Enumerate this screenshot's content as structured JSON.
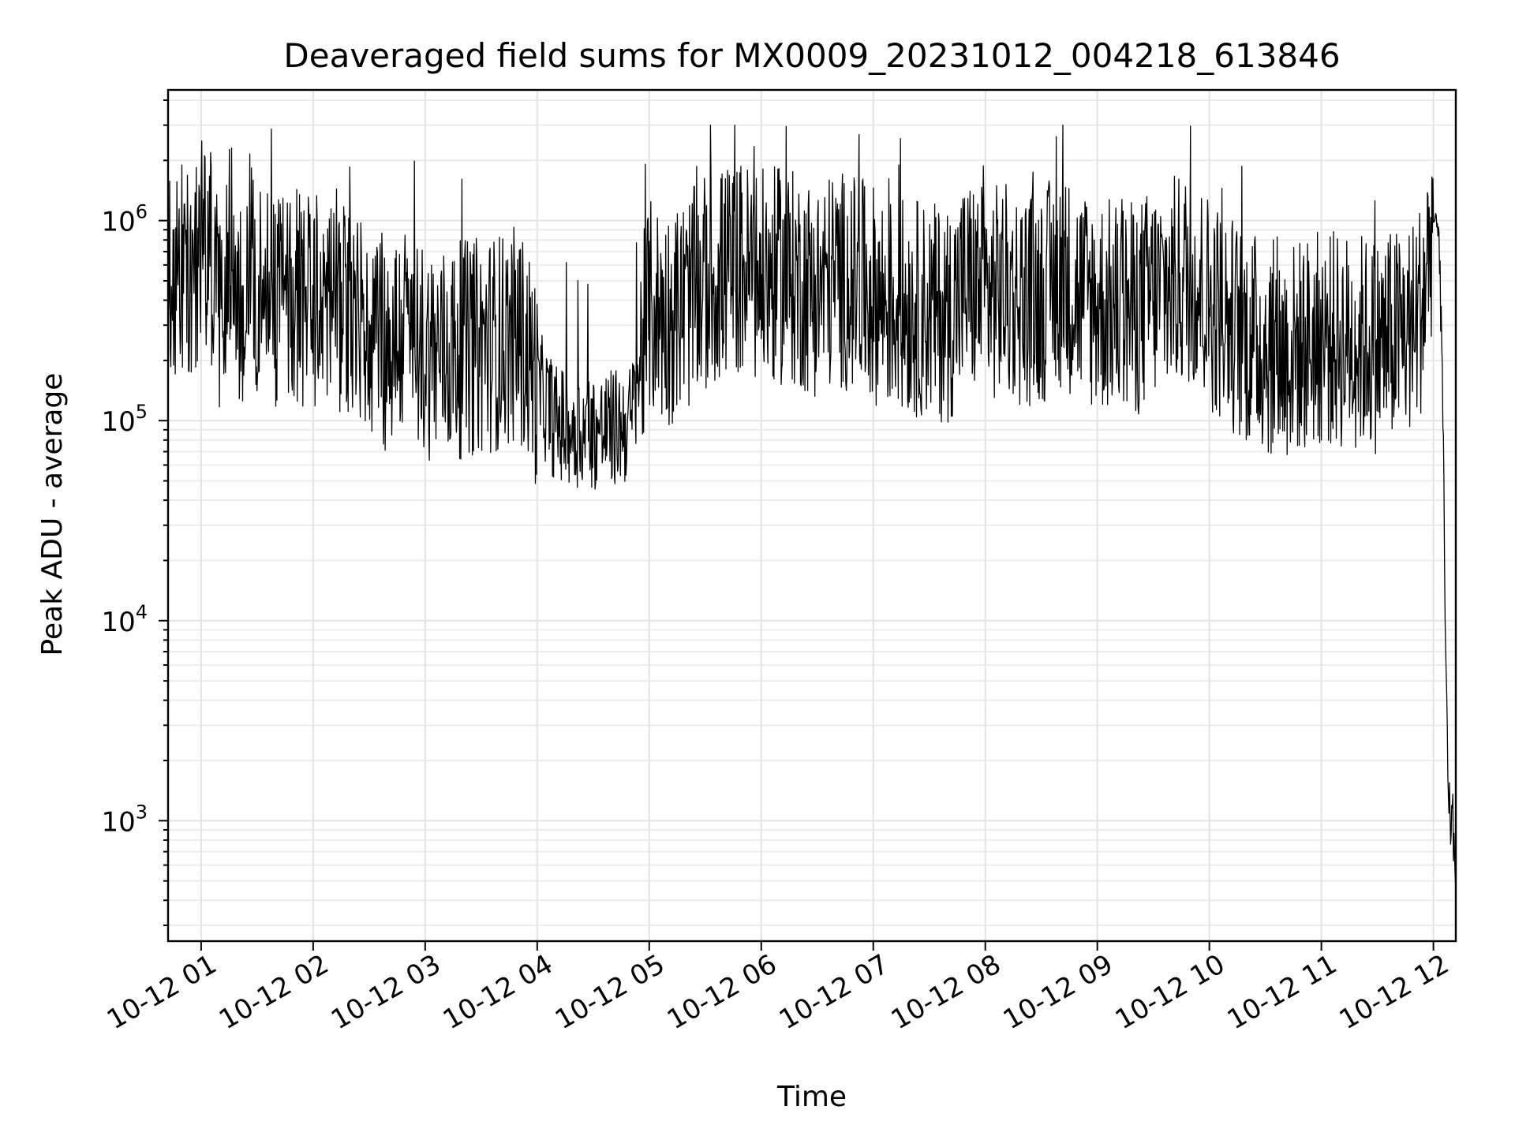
{
  "chart_data": {
    "type": "line",
    "title": "Deaveraged field sums for MX0009_20231012_004218_613846",
    "xlabel": "Time",
    "ylabel": "Peak ADU - average",
    "x_scale": "time",
    "y_scale": "log",
    "xlim": [
      "2023-10-12T00:42:18",
      "2023-10-12T12:12:00"
    ],
    "ylim": [
      250,
      4500000
    ],
    "x_ticks": [
      {
        "t": "2023-10-12T01:00:00",
        "label": "10-12 01"
      },
      {
        "t": "2023-10-12T02:00:00",
        "label": "10-12 02"
      },
      {
        "t": "2023-10-12T03:00:00",
        "label": "10-12 03"
      },
      {
        "t": "2023-10-12T04:00:00",
        "label": "10-12 04"
      },
      {
        "t": "2023-10-12T05:00:00",
        "label": "10-12 05"
      },
      {
        "t": "2023-10-12T06:00:00",
        "label": "10-12 06"
      },
      {
        "t": "2023-10-12T07:00:00",
        "label": "10-12 07"
      },
      {
        "t": "2023-10-12T08:00:00",
        "label": "10-12 08"
      },
      {
        "t": "2023-10-12T09:00:00",
        "label": "10-12 09"
      },
      {
        "t": "2023-10-12T10:00:00",
        "label": "10-12 10"
      },
      {
        "t": "2023-10-12T11:00:00",
        "label": "10-12 11"
      },
      {
        "t": "2023-10-12T12:00:00",
        "label": "10-12 12"
      }
    ],
    "y_ticks": [
      {
        "value": 1000,
        "base": "10",
        "exp": "3"
      },
      {
        "value": 10000,
        "base": "10",
        "exp": "4"
      },
      {
        "value": 100000,
        "base": "10",
        "exp": "5"
      },
      {
        "value": 1000000,
        "base": "10",
        "exp": "6"
      }
    ],
    "grid": true,
    "line_color": "#000000",
    "series": [
      {
        "x": [
          "2023-10-12T00:42:18",
          "2023-10-12T00:50:00",
          "2023-10-12T00:55:00",
          "2023-10-12T01:00:00",
          "2023-10-12T01:05:00",
          "2023-10-12T01:10:00",
          "2023-10-12T01:15:00",
          "2023-10-12T01:20:00",
          "2023-10-12T01:25:00",
          "2023-10-12T01:30:00",
          "2023-10-12T01:40:00",
          "2023-10-12T01:50:00",
          "2023-10-12T02:00:00",
          "2023-10-12T02:10:00",
          "2023-10-12T02:20:00",
          "2023-10-12T02:30:00",
          "2023-10-12T02:40:00",
          "2023-10-12T02:50:00",
          "2023-10-12T03:00:00",
          "2023-10-12T03:10:00",
          "2023-10-12T03:20:00",
          "2023-10-12T03:30:00",
          "2023-10-12T03:40:00",
          "2023-10-12T03:50:00",
          "2023-10-12T04:00:00",
          "2023-10-12T04:10:00",
          "2023-10-12T04:20:00",
          "2023-10-12T04:30:00",
          "2023-10-12T04:40:00",
          "2023-10-12T04:50:00",
          "2023-10-12T05:00:00",
          "2023-10-12T05:10:00",
          "2023-10-12T05:20:00",
          "2023-10-12T05:30:00",
          "2023-10-12T05:40:00",
          "2023-10-12T05:50:00",
          "2023-10-12T06:00:00",
          "2023-10-12T06:10:00",
          "2023-10-12T06:20:00",
          "2023-10-12T06:30:00",
          "2023-10-12T06:40:00",
          "2023-10-12T06:50:00",
          "2023-10-12T07:00:00",
          "2023-10-12T07:10:00",
          "2023-10-12T07:20:00",
          "2023-10-12T07:30:00",
          "2023-10-12T07:40:00",
          "2023-10-12T07:50:00",
          "2023-10-12T08:00:00",
          "2023-10-12T08:10:00",
          "2023-10-12T08:20:00",
          "2023-10-12T08:30:00",
          "2023-10-12T08:40:00",
          "2023-10-12T08:50:00",
          "2023-10-12T09:00:00",
          "2023-10-12T09:10:00",
          "2023-10-12T09:20:00",
          "2023-10-12T09:30:00",
          "2023-10-12T09:40:00",
          "2023-10-12T09:50:00",
          "2023-10-12T10:00:00",
          "2023-10-12T10:10:00",
          "2023-10-12T10:20:00",
          "2023-10-12T10:30:00",
          "2023-10-12T10:40:00",
          "2023-10-12T10:50:00",
          "2023-10-12T11:00:00",
          "2023-10-12T11:10:00",
          "2023-10-12T11:20:00",
          "2023-10-12T11:30:00",
          "2023-10-12T11:40:00",
          "2023-10-12T11:50:00",
          "2023-10-12T11:55:00",
          "2023-10-12T12:00:00",
          "2023-10-12T12:03:00",
          "2023-10-12T12:05:00",
          "2023-10-12T12:06:00",
          "2023-10-12T12:07:00",
          "2023-10-12T12:08:00",
          "2023-10-12T12:10:00",
          "2023-10-12T12:12:00"
        ],
        "y": [
          500000,
          480000,
          380000,
          800000,
          600000,
          320000,
          700000,
          260000,
          650000,
          420000,
          350000,
          380000,
          330000,
          380000,
          300000,
          240000,
          200000,
          260000,
          200000,
          190000,
          200000,
          210000,
          220000,
          240000,
          140000,
          90000,
          85000,
          82000,
          85000,
          90000,
          320000,
          290000,
          340000,
          420000,
          480000,
          510000,
          450000,
          470000,
          440000,
          400000,
          460000,
          420000,
          380000,
          330000,
          330000,
          310000,
          300000,
          420000,
          380000,
          390000,
          360000,
          370000,
          450000,
          380000,
          340000,
          320000,
          310000,
          380000,
          420000,
          460000,
          350000,
          280000,
          230000,
          210000,
          190000,
          210000,
          230000,
          220000,
          220000,
          210000,
          230000,
          260000,
          380000,
          1000000,
          900000,
          120000,
          15000,
          4000,
          1000,
          950,
          600
        ]
      }
    ]
  }
}
